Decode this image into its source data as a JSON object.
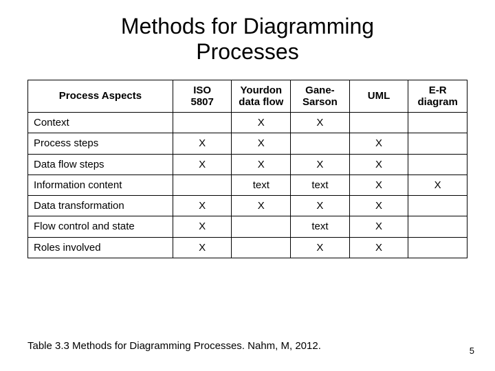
{
  "title_line1": "Methods for Diagramming",
  "title_line2": "Processes",
  "table": {
    "type": "table",
    "background_color": "#ffffff",
    "border_color": "#000000",
    "header_fontsize": 15,
    "cell_fontsize": 15,
    "columns": [
      {
        "label": "Process Aspects",
        "align": "left",
        "is_row_header": true
      },
      {
        "label_line1": "ISO",
        "label_line2": "5807",
        "align": "center"
      },
      {
        "label_line1": "Yourdon",
        "label_line2": "data flow",
        "align": "center"
      },
      {
        "label_line1": "Gane-",
        "label_line2": "Sarson",
        "align": "center"
      },
      {
        "label": "UML",
        "align": "center"
      },
      {
        "label_line1": "E-R",
        "label_line2": "diagram",
        "align": "center"
      }
    ],
    "rows": [
      {
        "aspect": "Context",
        "cells": [
          "",
          "X",
          "X",
          "",
          ""
        ]
      },
      {
        "aspect": "Process steps",
        "cells": [
          "X",
          "X",
          "",
          "X",
          ""
        ]
      },
      {
        "aspect": "Data flow steps",
        "cells": [
          "X",
          "X",
          "X",
          "X",
          ""
        ]
      },
      {
        "aspect": "Information content",
        "cells": [
          "",
          "text",
          "text",
          "X",
          "X"
        ]
      },
      {
        "aspect": "Data transformation",
        "cells": [
          "X",
          "X",
          "X",
          "X",
          ""
        ]
      },
      {
        "aspect": "Flow control and state",
        "cells": [
          "X",
          "",
          "text",
          "X",
          ""
        ]
      },
      {
        "aspect": "Roles involved",
        "cells": [
          "X",
          "",
          "X",
          "X",
          ""
        ]
      }
    ]
  },
  "caption": "Table 3.3  Methods for Diagramming Processes.  Nahm, M, 2012.",
  "page_number": "5"
}
